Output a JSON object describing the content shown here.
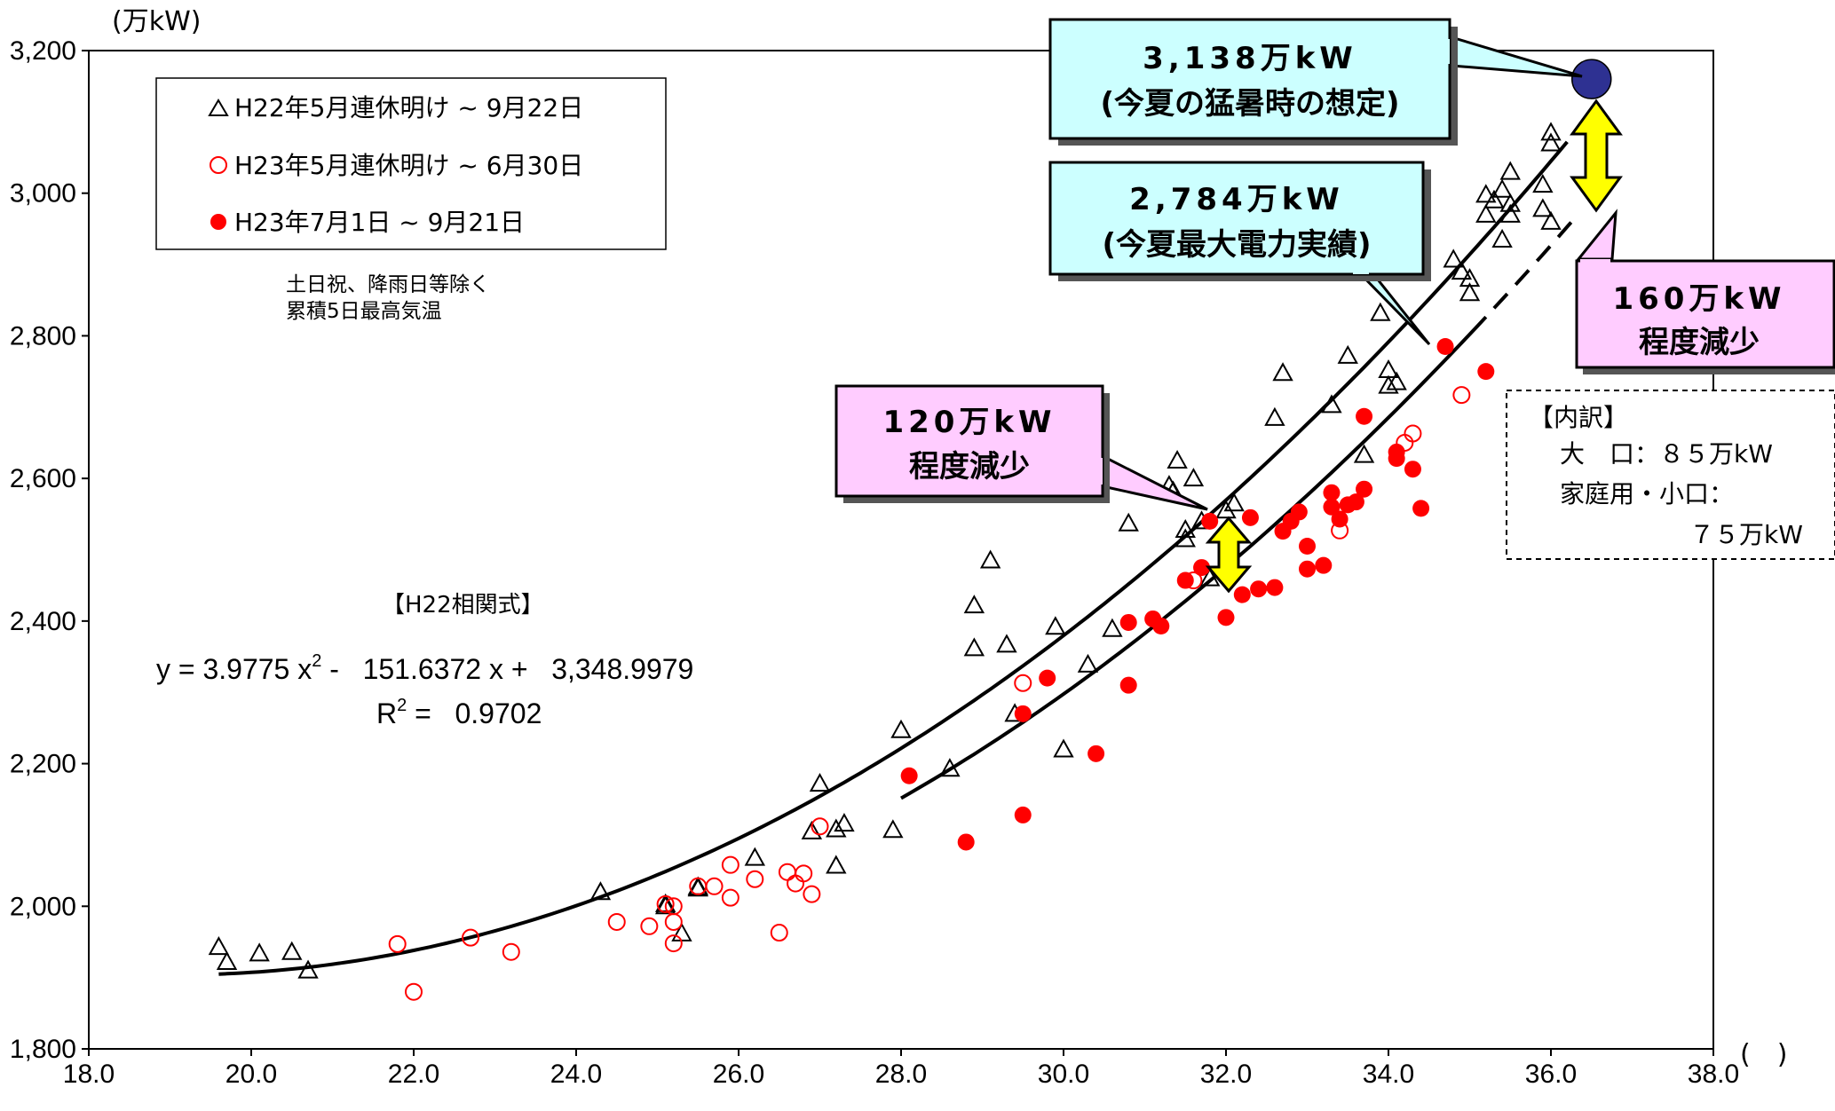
{
  "chart_data": {
    "type": "scatter",
    "ylabel": "(万kW)",
    "xlabel": "(　)",
    "xlim": [
      18.0,
      38.0
    ],
    "ylim": [
      1800,
      3200
    ],
    "x_ticks": [
      "18.0",
      "20.0",
      "22.0",
      "24.0",
      "26.0",
      "28.0",
      "30.0",
      "32.0",
      "34.0",
      "36.0",
      "38.0"
    ],
    "y_ticks": [
      "1,800",
      "2,000",
      "2,200",
      "2,400",
      "2,600",
      "2,800",
      "3,000",
      "3,200"
    ],
    "legend": {
      "position": "top-left",
      "entries": [
        {
          "marker": "triangle-open",
          "label": "H22年5月連休明け ~ 9月22日"
        },
        {
          "marker": "circle-open",
          "label": "H23年5月連休明け ~ 6月30日"
        },
        {
          "marker": "circle-filled",
          "label": "H23年7月1日 ~ 9月21日"
        }
      ]
    },
    "notes": [
      "土日祝、降雨日等除く",
      "累積5日最高気温"
    ],
    "equation": {
      "title": "【H22相関式】",
      "line1_prefix": "y =  3.9775 x",
      "line1_exp": "2",
      "line1_suffix": " -   151.6372 x +   3,348.9979",
      "line2_prefix": "R",
      "line2_exp": "2",
      "line2_suffix": " =   0.9702"
    },
    "series": [
      {
        "marker": "triangle-open",
        "color": "#000000",
        "points": [
          [
            19.6,
            1943
          ],
          [
            19.7,
            1922
          ],
          [
            20.1,
            1934
          ],
          [
            20.5,
            1936
          ],
          [
            20.7,
            1910
          ],
          [
            24.3,
            2020
          ],
          [
            25.1,
            2003
          ],
          [
            25.1,
            2000
          ],
          [
            25.3,
            1962
          ],
          [
            25.5,
            2025
          ],
          [
            25.5,
            2027
          ],
          [
            26.2,
            2068
          ],
          [
            26.9,
            2105
          ],
          [
            27.0,
            2172
          ],
          [
            27.2,
            2057
          ],
          [
            27.2,
            2108
          ],
          [
            27.3,
            2116
          ],
          [
            27.9,
            2107
          ],
          [
            28.0,
            2247
          ],
          [
            28.6,
            2193
          ],
          [
            28.9,
            2422
          ],
          [
            28.9,
            2362
          ],
          [
            29.1,
            2485
          ],
          [
            29.3,
            2367
          ],
          [
            29.4,
            2270
          ],
          [
            29.9,
            2392
          ],
          [
            30.0,
            2220
          ],
          [
            30.3,
            2339
          ],
          [
            30.6,
            2389
          ],
          [
            30.8,
            2537
          ],
          [
            31.3,
            2590
          ],
          [
            31.35,
            2582
          ],
          [
            31.4,
            2625
          ],
          [
            31.5,
            2528
          ],
          [
            31.5,
            2515
          ],
          [
            31.6,
            2600
          ],
          [
            31.7,
            2540
          ],
          [
            31.8,
            2460
          ],
          [
            32.0,
            2555
          ],
          [
            32.1,
            2565
          ],
          [
            32.6,
            2685
          ],
          [
            32.7,
            2748
          ],
          [
            33.3,
            2703
          ],
          [
            33.5,
            2772
          ],
          [
            33.7,
            2633
          ],
          [
            33.9,
            2832
          ],
          [
            34.0,
            2730
          ],
          [
            34.0,
            2752
          ],
          [
            34.1,
            2735
          ],
          [
            34.8,
            2907
          ],
          [
            34.9,
            2890
          ],
          [
            35.0,
            2880
          ],
          [
            35.0,
            2860
          ],
          [
            35.2,
            2998
          ],
          [
            35.2,
            2970
          ],
          [
            35.3,
            2990
          ],
          [
            35.4,
            2935
          ],
          [
            35.4,
            3005
          ],
          [
            35.5,
            2985
          ],
          [
            35.5,
            3030
          ],
          [
            35.5,
            2970
          ],
          [
            35.9,
            3012
          ],
          [
            35.9,
            2978
          ],
          [
            36.0,
            3085
          ],
          [
            36.0,
            3070
          ],
          [
            36.0,
            2960
          ]
        ]
      },
      {
        "marker": "circle-open",
        "color": "#ff0000",
        "points": [
          [
            21.8,
            1947
          ],
          [
            22.0,
            1880
          ],
          [
            22.7,
            1956
          ],
          [
            23.2,
            1936
          ],
          [
            24.5,
            1978
          ],
          [
            24.9,
            1972
          ],
          [
            25.1,
            2003
          ],
          [
            25.2,
            2000
          ],
          [
            25.2,
            1978
          ],
          [
            25.2,
            1948
          ],
          [
            25.5,
            2028
          ],
          [
            25.7,
            2028
          ],
          [
            25.9,
            2058
          ],
          [
            25.9,
            2012
          ],
          [
            26.2,
            2038
          ],
          [
            26.5,
            1963
          ],
          [
            26.6,
            2048
          ],
          [
            26.7,
            2032
          ],
          [
            26.8,
            2046
          ],
          [
            26.9,
            2017
          ],
          [
            27.0,
            2112
          ],
          [
            29.5,
            2313
          ],
          [
            31.6,
            2457
          ],
          [
            33.4,
            2527
          ],
          [
            34.2,
            2650
          ],
          [
            34.3,
            2663
          ],
          [
            34.9,
            2717
          ]
        ]
      },
      {
        "marker": "circle-filled",
        "color": "#ff0000",
        "points": [
          [
            28.1,
            2183
          ],
          [
            28.8,
            2090
          ],
          [
            29.5,
            2128
          ],
          [
            29.5,
            2270
          ],
          [
            29.8,
            2320
          ],
          [
            30.4,
            2214
          ],
          [
            30.8,
            2310
          ],
          [
            30.8,
            2398
          ],
          [
            31.1,
            2403
          ],
          [
            31.2,
            2393
          ],
          [
            31.5,
            2457
          ],
          [
            31.7,
            2475
          ],
          [
            31.8,
            2540
          ],
          [
            32.0,
            2405
          ],
          [
            32.0,
            2487
          ],
          [
            32.2,
            2437
          ],
          [
            32.3,
            2545
          ],
          [
            32.4,
            2445
          ],
          [
            32.6,
            2447
          ],
          [
            32.7,
            2526
          ],
          [
            32.8,
            2540
          ],
          [
            32.9,
            2553
          ],
          [
            33.0,
            2505
          ],
          [
            33.0,
            2473
          ],
          [
            33.2,
            2478
          ],
          [
            33.3,
            2580
          ],
          [
            33.3,
            2560
          ],
          [
            33.4,
            2543
          ],
          [
            33.5,
            2563
          ],
          [
            33.6,
            2567
          ],
          [
            33.7,
            2585
          ],
          [
            33.7,
            2687
          ],
          [
            34.1,
            2637
          ],
          [
            34.1,
            2628
          ],
          [
            34.3,
            2613
          ],
          [
            34.4,
            2558
          ],
          [
            34.7,
            2785
          ],
          [
            35.2,
            2750
          ]
        ]
      },
      {
        "marker": "circle-filled-large",
        "color": "#2e3192",
        "points": [
          [
            36.5,
            3160
          ]
        ]
      }
    ],
    "annotations": [
      {
        "lines": [
          "3,138万kW",
          "(今夏の猛暑時の想定)"
        ],
        "style": "callout",
        "fill": "#ccffff"
      },
      {
        "lines": [
          "2,784万kW",
          "(今夏最大電力実績)"
        ],
        "style": "callout",
        "fill": "#ccffff"
      },
      {
        "lines": [
          "160万kW",
          "程度減少"
        ],
        "style": "callout",
        "fill": "#ffccff"
      },
      {
        "lines": [
          "120万kW",
          "程度減少"
        ],
        "style": "callout",
        "fill": "#ffccff"
      },
      {
        "lines": [
          "【内訳】",
          "大　口：８５万kW",
          "家庭用・小口：",
          "７５万kW"
        ],
        "style": "dashed-box"
      }
    ],
    "grid": false
  }
}
